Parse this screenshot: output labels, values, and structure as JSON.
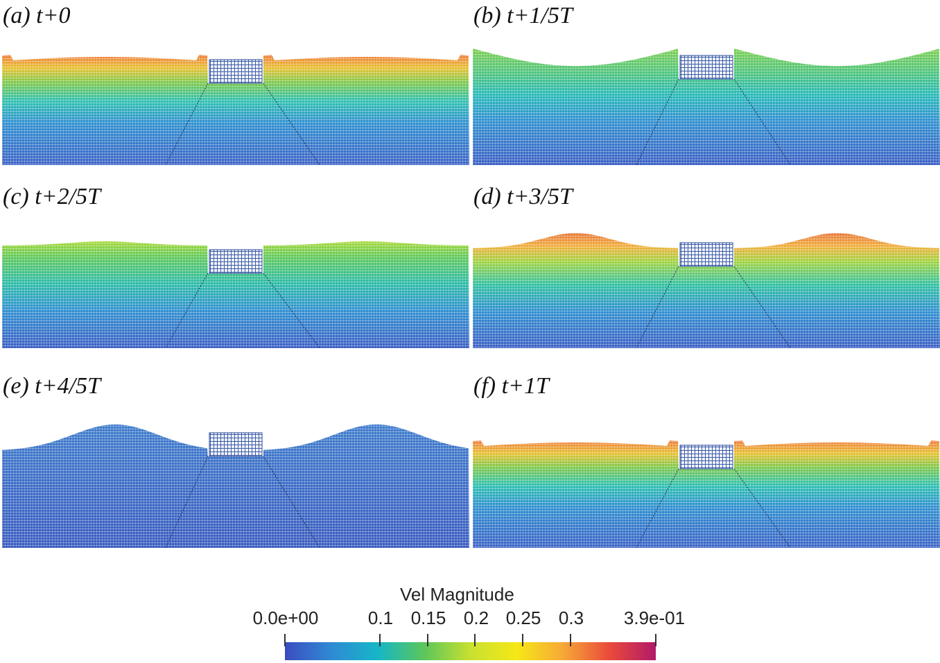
{
  "panels": [
    {
      "id": "a",
      "label": "(a) t+0",
      "surface": "hot"
    },
    {
      "id": "b",
      "label": "(b) t+1/5T",
      "surface": "cool"
    },
    {
      "id": "c",
      "label": "(c) t+2/5T",
      "surface": "green"
    },
    {
      "id": "d",
      "label": "(d) t+3/5T",
      "surface": "crest"
    },
    {
      "id": "e",
      "label": "(e) t+4/5T",
      "surface": "blue"
    },
    {
      "id": "f",
      "label": "(f) t+1T",
      "surface": "hot"
    }
  ],
  "colorbar": {
    "title": "Vel Magnitude",
    "min_label": "0.0e+00",
    "max_label": "3.9e-01",
    "min": 0.0,
    "max": 0.39,
    "ticks": [
      {
        "value": 0.1,
        "label": "0.1"
      },
      {
        "value": 0.15,
        "label": "0.15"
      },
      {
        "value": 0.2,
        "label": "0.2"
      },
      {
        "value": 0.25,
        "label": "0.25"
      },
      {
        "value": 0.3,
        "label": "0.3"
      }
    ],
    "colors": [
      "#3b4cc0",
      "#2f8ad4",
      "#16b6c8",
      "#5bc65b",
      "#c8e030",
      "#f5e816",
      "#f7a838",
      "#ea4a3a",
      "#b11a68"
    ]
  }
}
